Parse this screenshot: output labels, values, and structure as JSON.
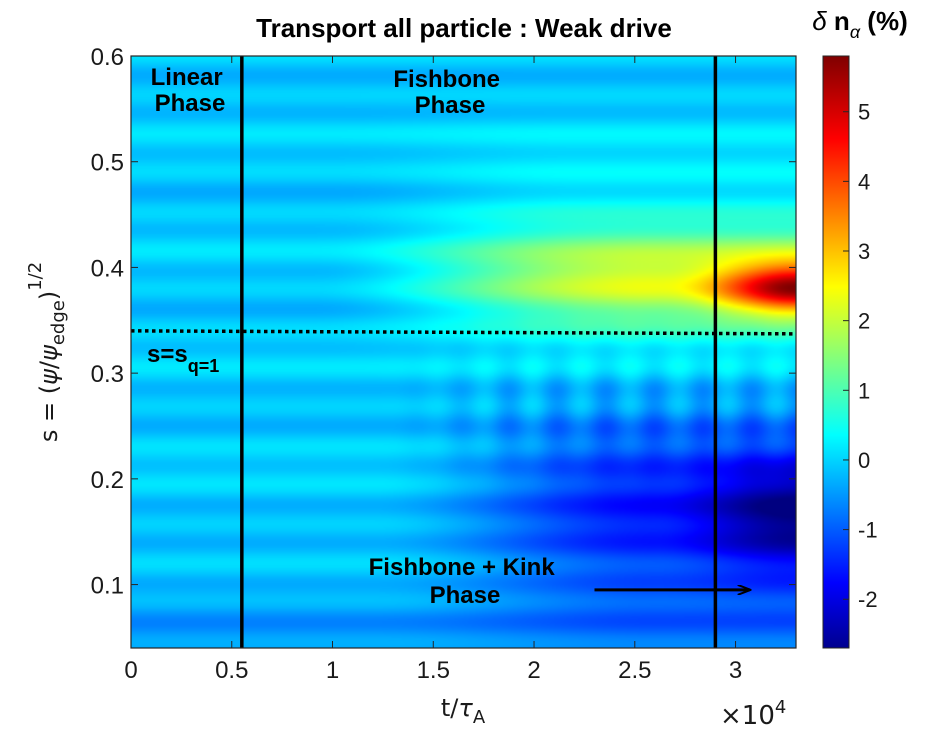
{
  "chart_data": {
    "type": "heatmap",
    "title": "Transport all particle : Weak drive",
    "xlabel": "t/τA",
    "xlabel_parts": {
      "main": "t/",
      "tau": "τ",
      "sub": "A"
    },
    "ylabel": "s = (ψ/ψedge)1/2",
    "ylabel_parts": {
      "pre": "s = (",
      "psi1": "ψ",
      "slash": "/",
      "psi2": "ψ",
      "sub": "edge",
      "close": ")",
      "sup": "1/2"
    },
    "x_multiplier": "×10^4",
    "x_multiplier_parts": {
      "times": "×10",
      "exp": "4"
    },
    "xlim": [
      0,
      3.3
    ],
    "ylim": [
      0.04,
      0.6
    ],
    "xticks": [
      0,
      0.5,
      1,
      1.5,
      2,
      2.5,
      3
    ],
    "xticklabels": [
      "0",
      "0.5",
      "1",
      "1.5",
      "2",
      "2.5",
      "3"
    ],
    "yticks": [
      0.1,
      0.2,
      0.3,
      0.4,
      0.5,
      0.6
    ],
    "yticklabels": [
      "0.1",
      "0.2",
      "0.3",
      "0.4",
      "0.5",
      "0.6"
    ],
    "colorbar": {
      "label": "δ nα (%)",
      "label_parts": {
        "delta": "δ",
        "n": " n",
        "sub": "α",
        "unit": " (%)"
      },
      "range": [
        -2.7,
        5.8
      ],
      "ticks": [
        -2,
        -1,
        0,
        1,
        2,
        3,
        4,
        5
      ],
      "ticklabels": [
        "-2",
        "-1",
        "0",
        "1",
        "2",
        "3",
        "4",
        "5"
      ]
    },
    "vertical_lines": [
      0.55,
      2.9
    ],
    "q1_surface_s": 0.34,
    "annotations": {
      "linear": [
        "Linear",
        "Phase"
      ],
      "fishbone": [
        "Fishbone",
        "Phase"
      ],
      "kink": [
        "Fishbone + Kink",
        "Phase"
      ],
      "q1_label": {
        "main": "s=s",
        "sub": "q=1"
      }
    },
    "arrow": {
      "from": [
        2.3,
        0.095
      ],
      "to": [
        3.07,
        0.095
      ]
    },
    "field_description": "Delta n_alpha(t,s): ~0 background; growth near s=0.34-0.42 peaking ~5.8% at t~3.3e4, s~0.38; depletion ~-2.7% around s=0.17 at late time"
  }
}
